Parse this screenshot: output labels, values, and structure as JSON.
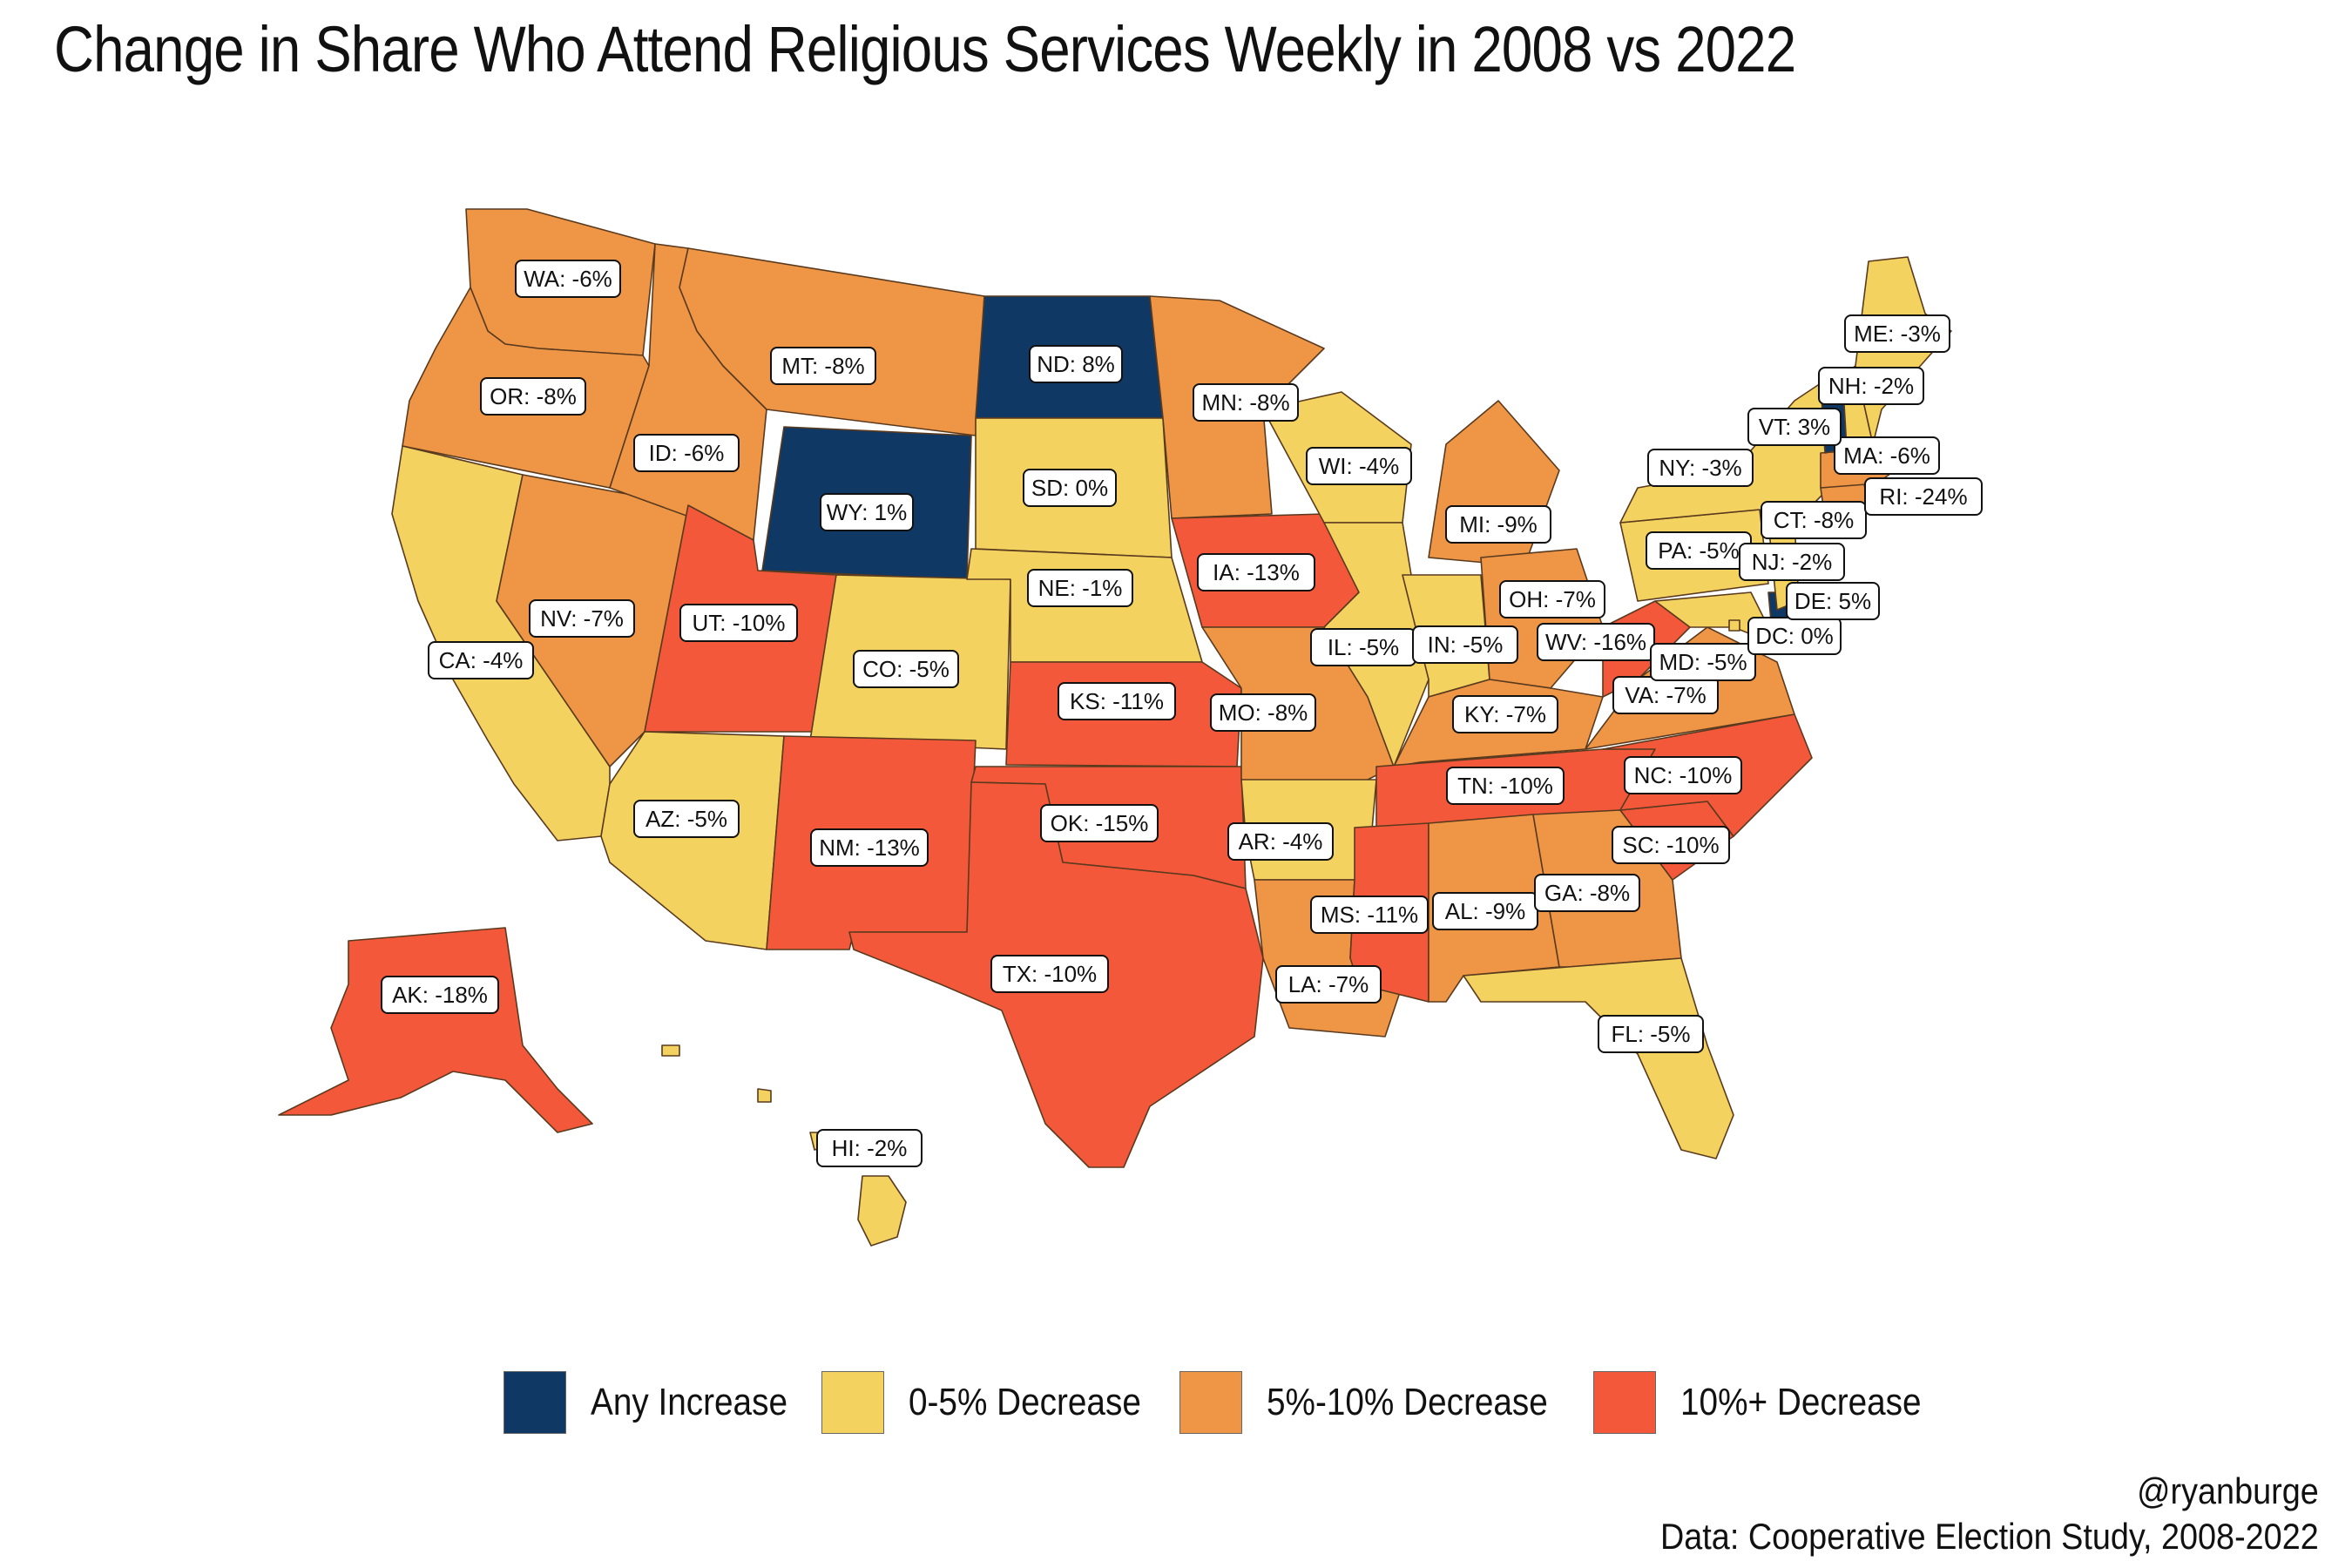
{
  "title": "Change in Share Who Attend Religious Services Weekly in 2008 vs 2022",
  "colors": {
    "increase": "#0f3864",
    "d0_5": "#f3d25f",
    "d5_10": "#ee9646",
    "d10p": "#f4583a"
  },
  "legend": [
    {
      "label": "Any Increase",
      "color": "#0f3864"
    },
    {
      "label": "0-5% Decrease",
      "color": "#f3d25f"
    },
    {
      "label": "5%-10% Decrease",
      "color": "#ee9646"
    },
    {
      "label": "10%+ Decrease",
      "color": "#f4583a"
    }
  ],
  "credit": {
    "handle": "@ryanburge",
    "source": "Data: Cooperative Election Study, 2008-2022"
  },
  "chart_data": {
    "type": "choropleth",
    "states": [
      {
        "abbr": "WA",
        "label": "WA: -6%",
        "change": -6
      },
      {
        "abbr": "OR",
        "label": "OR: -8%",
        "change": -8
      },
      {
        "abbr": "CA",
        "label": "CA: -4%",
        "change": -4
      },
      {
        "abbr": "NV",
        "label": "NV: -7%",
        "change": -7
      },
      {
        "abbr": "ID",
        "label": "ID: -6%",
        "change": -6
      },
      {
        "abbr": "MT",
        "label": "MT: -8%",
        "change": -8
      },
      {
        "abbr": "WY",
        "label": "WY: 1%",
        "change": 1
      },
      {
        "abbr": "UT",
        "label": "UT: -10%",
        "change": -10
      },
      {
        "abbr": "AZ",
        "label": "AZ: -5%",
        "change": -5
      },
      {
        "abbr": "CO",
        "label": "CO: -5%",
        "change": -5
      },
      {
        "abbr": "NM",
        "label": "NM: -13%",
        "change": -13
      },
      {
        "abbr": "ND",
        "label": "ND: 8%",
        "change": 8
      },
      {
        "abbr": "SD",
        "label": "SD: 0%",
        "change": 0
      },
      {
        "abbr": "NE",
        "label": "NE: -1%",
        "change": -1
      },
      {
        "abbr": "KS",
        "label": "KS: -11%",
        "change": -11
      },
      {
        "abbr": "OK",
        "label": "OK: -15%",
        "change": -15
      },
      {
        "abbr": "TX",
        "label": "TX: -10%",
        "change": -10
      },
      {
        "abbr": "MN",
        "label": "MN: -8%",
        "change": -8
      },
      {
        "abbr": "IA",
        "label": "IA: -13%",
        "change": -13
      },
      {
        "abbr": "MO",
        "label": "MO: -8%",
        "change": -8
      },
      {
        "abbr": "AR",
        "label": "AR: -4%",
        "change": -4
      },
      {
        "abbr": "LA",
        "label": "LA: -7%",
        "change": -7
      },
      {
        "abbr": "WI",
        "label": "WI: -4%",
        "change": -4
      },
      {
        "abbr": "IL",
        "label": "IL: -5%",
        "change": -5
      },
      {
        "abbr": "MI",
        "label": "MI: -9%",
        "change": -9
      },
      {
        "abbr": "IN",
        "label": "IN: -5%",
        "change": -5
      },
      {
        "abbr": "OH",
        "label": "OH: -7%",
        "change": -7
      },
      {
        "abbr": "KY",
        "label": "KY: -7%",
        "change": -7
      },
      {
        "abbr": "TN",
        "label": "TN: -10%",
        "change": -10
      },
      {
        "abbr": "MS",
        "label": "MS: -11%",
        "change": -11
      },
      {
        "abbr": "AL",
        "label": "AL: -9%",
        "change": -9
      },
      {
        "abbr": "GA",
        "label": "GA: -8%",
        "change": -8
      },
      {
        "abbr": "FL",
        "label": "FL: -5%",
        "change": -5
      },
      {
        "abbr": "SC",
        "label": "SC: -10%",
        "change": -10
      },
      {
        "abbr": "NC",
        "label": "NC: -10%",
        "change": -10
      },
      {
        "abbr": "VA",
        "label": "VA: -7%",
        "change": -7
      },
      {
        "abbr": "WV",
        "label": "WV: -16%",
        "change": -16
      },
      {
        "abbr": "MD",
        "label": "MD: -5%",
        "change": -5
      },
      {
        "abbr": "DC",
        "label": "DC: 0%",
        "change": 0
      },
      {
        "abbr": "DE",
        "label": "DE: 5%",
        "change": 5
      },
      {
        "abbr": "PA",
        "label": "PA: -5%",
        "change": -5
      },
      {
        "abbr": "NJ",
        "label": "NJ: -2%",
        "change": -2
      },
      {
        "abbr": "NY",
        "label": "NY: -3%",
        "change": -3
      },
      {
        "abbr": "CT",
        "label": "CT: -8%",
        "change": -8
      },
      {
        "abbr": "RI",
        "label": "RI: -24%",
        "change": -24
      },
      {
        "abbr": "MA",
        "label": "MA: -6%",
        "change": -6
      },
      {
        "abbr": "VT",
        "label": "VT: 3%",
        "change": 3
      },
      {
        "abbr": "NH",
        "label": "NH: -2%",
        "change": -2
      },
      {
        "abbr": "ME",
        "label": "ME: -3%",
        "change": -3
      },
      {
        "abbr": "AK",
        "label": "AK: -18%",
        "change": -18
      },
      {
        "abbr": "HI",
        "label": "HI: -2%",
        "change": -2
      }
    ]
  }
}
